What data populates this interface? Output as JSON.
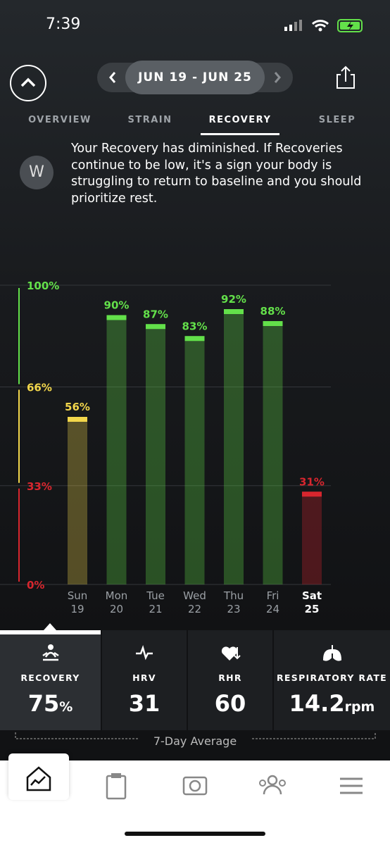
{
  "status_bar": {
    "time": "7:39"
  },
  "header": {
    "date_range": "JUN 19 - JUN 25"
  },
  "tabs": [
    "OVERVIEW",
    "STRAIN",
    "RECOVERY",
    "SLEEP"
  ],
  "active_tab": 2,
  "message": "Your Recovery has diminished. If Recoveries continue to be low, it's a sign your body is struggling to return to baseline and you should prioritize rest.",
  "chart_data": {
    "type": "bar",
    "categories": [
      "Sun",
      "Mon",
      "Tue",
      "Wed",
      "Thu",
      "Fri",
      "Sat"
    ],
    "category_dates": [
      "19",
      "20",
      "21",
      "22",
      "23",
      "24",
      "25"
    ],
    "selected_category": 6,
    "values": [
      56,
      90,
      87,
      83,
      92,
      88,
      31
    ],
    "value_labels": [
      "56%",
      "90%",
      "87%",
      "83%",
      "92%",
      "88%",
      "31%"
    ],
    "colors": [
      "#f2d64b",
      "#63e04a",
      "#63e04a",
      "#63e04a",
      "#63e04a",
      "#63e04a",
      "#d8262e"
    ],
    "ylim": [
      0,
      100
    ],
    "yticks": [
      {
        "value": 0,
        "label": "0%"
      },
      {
        "value": 33,
        "label": "33%"
      },
      {
        "value": 66,
        "label": "66%"
      },
      {
        "value": 100,
        "label": "100%"
      }
    ],
    "ytick_colors": [
      "#d8262e",
      "#d8262e",
      "#f2d64b",
      "#63e04a"
    ],
    "grid": true
  },
  "metrics": [
    {
      "label": "RECOVERY",
      "value": "75",
      "unit": "%"
    },
    {
      "label": "HRV",
      "value": "31"
    },
    {
      "label": "RHR",
      "value": "60"
    },
    {
      "label": "RESPIRATORY RATE",
      "value": "14.2",
      "unit": "rpm"
    }
  ],
  "average_label": "7-Day Average"
}
